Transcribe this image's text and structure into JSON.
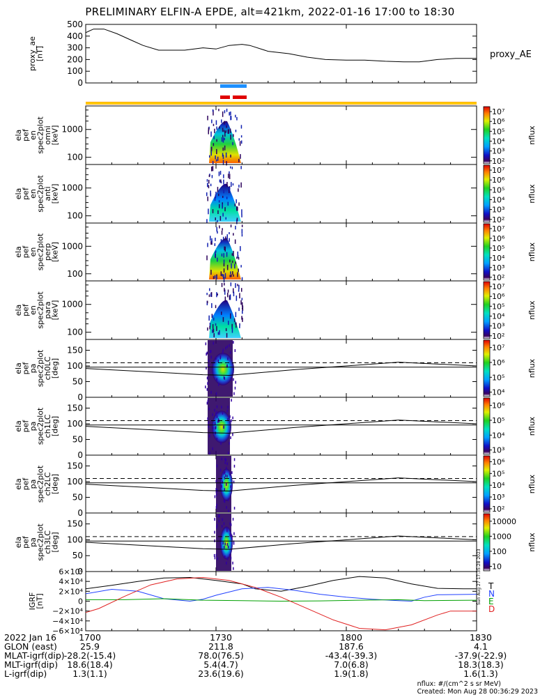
{
  "title": "PRELIMINARY ELFIN-A EPDE, alt=421km, 2022-01-16 17:00 to 18:30",
  "colors": {
    "orange": "#ffa500",
    "yellow": "#ffd400",
    "blue": "#1e90ff",
    "red": "#e00000",
    "T": "#000000",
    "N": "#2040ff",
    "E": "#00a000",
    "D": "#e02020"
  },
  "chart_data": {
    "type": "line",
    "time_range": [
      "17:00",
      "18:30"
    ],
    "x_ticks": [
      "1700",
      "1730",
      "1800",
      "1830"
    ],
    "panels": [
      {
        "id": "proxy_ae",
        "ylabel": [
          "proxy_ae",
          "[nT]"
        ],
        "legend": "proxy_AE",
        "ylim": [
          0,
          500
        ],
        "yticks": [
          "0",
          "100",
          "200",
          "300",
          "400",
          "500"
        ],
        "t": [
          17.0,
          17.03,
          17.07,
          17.12,
          17.18,
          17.22,
          17.28,
          17.33,
          17.38,
          17.45,
          17.5,
          17.55,
          17.6,
          17.63,
          17.7,
          17.78,
          17.85,
          17.92,
          18.0,
          18.07,
          18.15,
          18.22,
          18.28,
          18.35,
          18.42,
          18.5
        ],
        "v": [
          430,
          460,
          460,
          420,
          360,
          320,
          280,
          280,
          280,
          300,
          290,
          320,
          330,
          320,
          270,
          250,
          220,
          200,
          195,
          195,
          185,
          180,
          180,
          200,
          210,
          210
        ]
      },
      {
        "id": "en_omni",
        "ylabel": [
          "ela",
          "pef",
          "en",
          "spec2plot",
          "omni",
          "[keV]"
        ],
        "ylog": true,
        "yticks": [
          "100",
          "1000"
        ],
        "cbar_ticks": [
          "10²",
          "10³",
          "10⁴",
          "10⁵",
          "10⁶",
          "10⁷"
        ],
        "cbar_label": "nflux"
      },
      {
        "id": "en_anti",
        "ylabel": [
          "ela",
          "pef",
          "en",
          "spec2plot",
          "anti",
          "[keV]"
        ],
        "ylog": true,
        "yticks": [
          "100",
          "1000"
        ],
        "cbar_ticks": [
          "10²",
          "10³",
          "10⁴",
          "10⁵",
          "10⁶",
          "10⁷"
        ],
        "cbar_label": "nflux"
      },
      {
        "id": "en_perp",
        "ylabel": [
          "ela",
          "pef",
          "en",
          "spec2plot",
          "perp",
          "[keV]"
        ],
        "ylog": true,
        "yticks": [
          "100",
          "1000"
        ],
        "cbar_ticks": [
          "10²",
          "10³",
          "10⁴",
          "10⁵",
          "10⁶",
          "10⁷"
        ],
        "cbar_label": "nflux"
      },
      {
        "id": "en_para",
        "ylabel": [
          "ela",
          "pef",
          "en",
          "spec2plot",
          "para",
          "[keV]"
        ],
        "ylog": true,
        "yticks": [
          "100",
          "1000"
        ],
        "cbar_ticks": [
          "10²",
          "10³",
          "10⁴",
          "10⁵",
          "10⁶",
          "10⁷"
        ],
        "cbar_label": "nflux"
      },
      {
        "id": "pa_ch0",
        "ylabel": [
          "ela",
          "pef",
          "pa",
          "spec2plot",
          "ch0LC",
          "[deg]"
        ],
        "ylim": [
          0,
          180
        ],
        "yticks": [
          "0",
          "50",
          "100",
          "150"
        ],
        "cbar_ticks": [
          "10⁴",
          "10⁵",
          "10⁶",
          "10⁷"
        ],
        "cbar_label": "nflux"
      },
      {
        "id": "pa_ch1",
        "ylabel": [
          "ela",
          "pef",
          "pa",
          "spec2plot",
          "ch1LC",
          "[deg]"
        ],
        "ylim": [
          0,
          180
        ],
        "yticks": [
          "0",
          "50",
          "100",
          "150"
        ],
        "cbar_ticks": [
          "10³",
          "10⁴",
          "10⁵",
          "10⁶"
        ],
        "cbar_label": "nflux"
      },
      {
        "id": "pa_ch2",
        "ylabel": [
          "ela",
          "pef",
          "pa",
          "spec2plot",
          "ch2LC",
          "[deg]"
        ],
        "ylim": [
          0,
          180
        ],
        "yticks": [
          "0",
          "50",
          "100",
          "150"
        ],
        "cbar_ticks": [
          "10²",
          "10³",
          "10⁴",
          "10⁵",
          "10⁶"
        ],
        "cbar_label": "nflux"
      },
      {
        "id": "pa_ch3",
        "ylabel": [
          "ela",
          "pef",
          "pa",
          "spec2plot",
          "ch3LC",
          "[deg]"
        ],
        "ylim": [
          0,
          180
        ],
        "yticks": [
          "0",
          "50",
          "100",
          "150"
        ],
        "cbar_ticks": [
          "10",
          "100",
          "1000",
          "10000"
        ],
        "cbar_label": "nflux"
      },
      {
        "id": "igrf",
        "ylabel": [
          "IGRF",
          "[nT]"
        ],
        "ylim": [
          -60000,
          60000
        ],
        "yticks": [
          "−6×10⁴",
          "−4×10⁴",
          "−2×10⁴",
          "0",
          "2×10⁴",
          "4×10⁴",
          "6×10⁴"
        ],
        "legend": [
          "T",
          "N",
          "E",
          "D"
        ],
        "series": [
          {
            "name": "T",
            "t": [
              17.0,
              17.1,
              17.2,
              17.3,
              17.4,
              17.5,
              17.6,
              17.65,
              17.75,
              17.85,
              17.95,
              18.05,
              18.15,
              18.25,
              18.35,
              18.45,
              18.5
            ],
            "v": [
              25000,
              32000,
              40000,
              47000,
              48000,
              42000,
              35000,
              25000,
              20000,
              30000,
              42000,
              50000,
              47000,
              35000,
              26000,
              25000,
              25000
            ]
          },
          {
            "name": "N",
            "t": [
              17.0,
              17.1,
              17.2,
              17.3,
              17.4,
              17.45,
              17.5,
              17.6,
              17.7,
              17.8,
              17.9,
              18.0,
              18.1,
              18.2,
              18.25,
              18.3,
              18.35,
              18.5
            ],
            "v": [
              15000,
              24000,
              20000,
              5000,
              0,
              4000,
              12000,
              25000,
              28000,
              22000,
              14000,
              8000,
              4000,
              1000,
              0,
              8000,
              13000,
              14000
            ]
          },
          {
            "name": "E",
            "t": [
              17.0,
              17.15,
              17.3,
              17.45,
              17.6,
              17.75,
              17.9,
              18.05,
              18.2,
              18.3,
              18.5
            ],
            "v": [
              3000,
              3000,
              5000,
              2000,
              1000,
              0,
              500,
              2000,
              3000,
              1000,
              2000
            ]
          },
          {
            "name": "D",
            "t": [
              17.0,
              17.05,
              17.15,
              17.25,
              17.35,
              17.45,
              17.55,
              17.65,
              17.75,
              17.85,
              17.95,
              18.05,
              18.15,
              18.25,
              18.35,
              18.4,
              18.5
            ],
            "v": [
              -23000,
              -15000,
              10000,
              33000,
              45000,
              48000,
              42000,
              28000,
              8000,
              -15000,
              -38000,
              -55000,
              -58000,
              -48000,
              -28000,
              -20000,
              -20000
            ]
          }
        ]
      }
    ]
  },
  "ephemeris": {
    "rows": [
      {
        "label": "2022 Jan 16",
        "values": [
          "1700",
          "1730",
          "1800",
          "1830"
        ]
      },
      {
        "label": "GLON (east)",
        "values": [
          "25.9",
          "211.8",
          "187.6",
          "4.1"
        ]
      },
      {
        "label": "MLAT-igrf(dip)",
        "values": [
          "-28.2(-15.4)",
          "78.0(76.5)",
          "-43.4(-39.3)",
          "-37.9(-22.9)"
        ]
      },
      {
        "label": "MLT-igrf(dip)",
        "values": [
          "18.6(18.4)",
          "5.4(4.7)",
          "7.0(6.8)",
          "18.3(18.3)"
        ]
      },
      {
        "label": "L-igrf(dip)",
        "values": [
          "1.3(1.1)",
          "23.6(19.6)",
          "1.9(1.8)",
          "1.6(1.3)"
        ]
      }
    ]
  },
  "footer": {
    "units": "nflux: #/(cm^2 s sr MeV)",
    "created": "Created: Mon Aug 28 00:36:29 2023"
  },
  "side_stamp": "Sun Aug 27 17:35:28 2023"
}
